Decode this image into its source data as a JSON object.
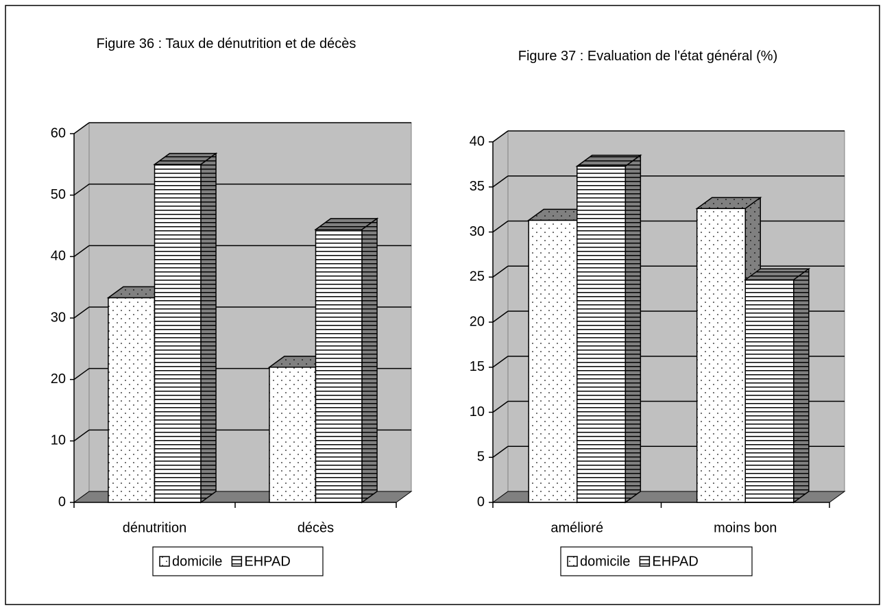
{
  "chart_data": [
    {
      "type": "bar3d",
      "title": "Figure 36 : Taux de dénutrition et de décès",
      "categories": [
        "dénutrition",
        "décès"
      ],
      "series": [
        {
          "name": "domicile",
          "color": "#ffffff",
          "pattern": "dots",
          "values": [
            33.3,
            22
          ]
        },
        {
          "name": "EHPAD",
          "color": "#ffffff",
          "pattern": "hlines",
          "values": [
            55,
            44.4
          ]
        }
      ],
      "ylim": [
        0,
        60
      ],
      "yticks": [
        0,
        10,
        20,
        30,
        40,
        50,
        60
      ],
      "grid": true,
      "legend": "bottom"
    },
    {
      "type": "bar3d",
      "title": "Figure 37 : Evaluation de l'état général (%)",
      "categories": [
        "amélioré",
        "moins bon"
      ],
      "series": [
        {
          "name": "domicile",
          "color": "#ffffff",
          "pattern": "dots",
          "values": [
            31.3,
            32.6
          ]
        },
        {
          "name": "EHPAD",
          "color": "#ffffff",
          "pattern": "hlines",
          "values": [
            37.3,
            24.7
          ]
        }
      ],
      "ylim": [
        0,
        40
      ],
      "yticks": [
        0,
        5,
        10,
        15,
        20,
        25,
        30,
        35,
        40
      ],
      "grid": true,
      "legend": "bottom"
    }
  ]
}
